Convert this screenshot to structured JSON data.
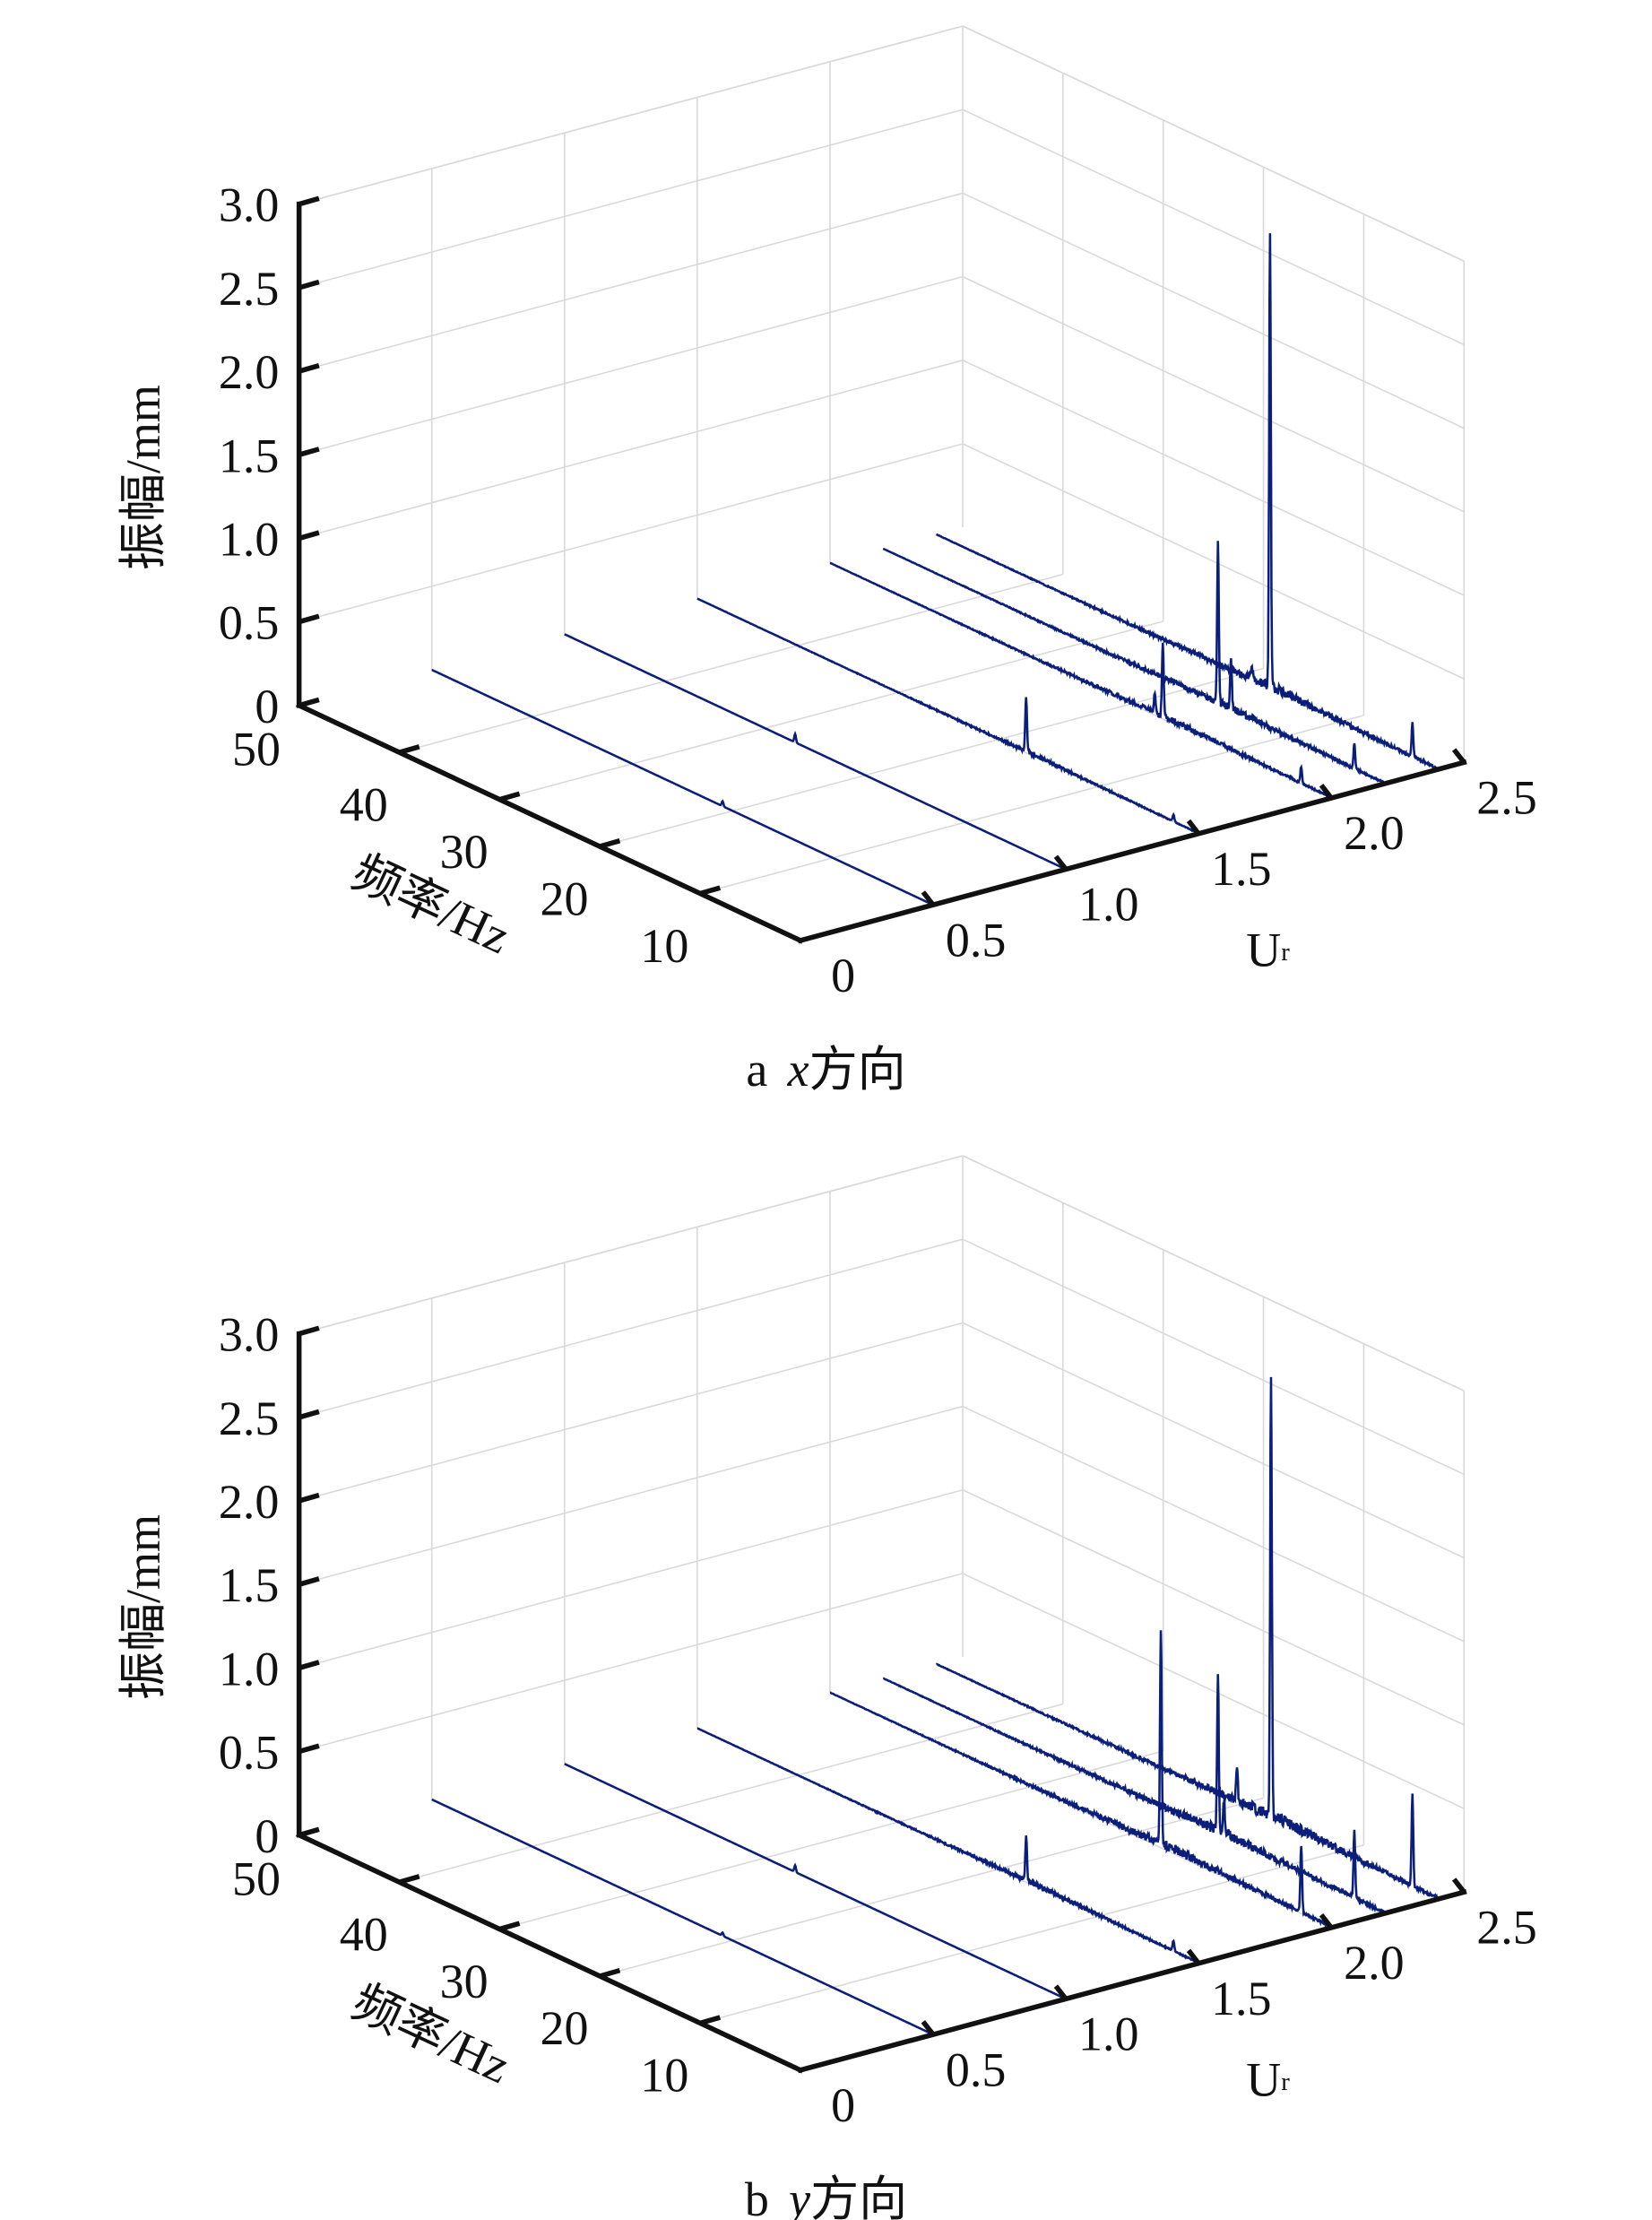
{
  "colors": {
    "series": "#0b1f7a",
    "grid": "#d9d9d9",
    "axis": "#111111"
  },
  "chart_data": [
    {
      "type": "line",
      "subtype": "3d-waterfall",
      "caption_letter": "a",
      "caption_var": "x",
      "caption_text": "方向",
      "zlabel": "振幅/mm",
      "flabel": "频率/Hz",
      "ulabel_main": "U",
      "ulabel_sub": "r",
      "zlim": [
        0,
        3.0
      ],
      "flim": [
        0,
        50
      ],
      "ulim": [
        0,
        2.5
      ],
      "zticks": [
        "0",
        "0.5",
        "1.0",
        "1.5",
        "2.0",
        "2.5",
        "3.0"
      ],
      "fticks": [
        "10",
        "20",
        "30",
        "40",
        "50"
      ],
      "uticks": [
        "0",
        "0.5",
        "1.0",
        "1.5",
        "2.0",
        "2.5"
      ],
      "series": [
        {
          "ur": 0.5,
          "noise": 0.0,
          "peaks": [
            {
              "freq": 21,
              "amp": 0.03
            }
          ]
        },
        {
          "ur": 1.0,
          "noise": 0.0,
          "peaks": [
            {
              "freq": 27,
              "amp": 0.05
            }
          ]
        },
        {
          "ur": 1.5,
          "noise": 0.01,
          "peaks": [
            {
              "freq": 17.2,
              "amp": 0.33
            },
            {
              "freq": 2.5,
              "amp": 0.04
            }
          ]
        },
        {
          "ur": 2.0,
          "noise": 0.02,
          "peaks": [
            {
              "freq": 16.8,
              "amp": 0.43
            },
            {
              "freq": 17.6,
              "amp": 0.12
            },
            {
              "freq": 3.0,
              "amp": 0.1
            }
          ]
        },
        {
          "ur": 2.2,
          "noise": 0.025,
          "peaks": [
            {
              "freq": 16.6,
              "amp": 0.95
            },
            {
              "freq": 15.3,
              "amp": 0.3
            },
            {
              "freq": 3.0,
              "amp": 0.15
            }
          ]
        },
        {
          "ur": 2.4,
          "noise": 0.03,
          "peaks": [
            {
              "freq": 16.7,
              "amp": 2.7
            },
            {
              "freq": 18.5,
              "amp": 0.08
            },
            {
              "freq": 2.5,
              "amp": 0.2
            }
          ]
        }
      ]
    },
    {
      "type": "line",
      "subtype": "3d-waterfall",
      "caption_letter": "b",
      "caption_var": "y",
      "caption_text": "方向",
      "zlabel": "振幅/mm",
      "flabel": "频率/Hz",
      "ulabel_main": "U",
      "ulabel_sub": "r",
      "zlim": [
        0,
        3.0
      ],
      "flim": [
        0,
        50
      ],
      "ulim": [
        0,
        2.5
      ],
      "zticks": [
        "0",
        "0.5",
        "1.0",
        "1.5",
        "2.0",
        "2.5",
        "3.0"
      ],
      "fticks": [
        "10",
        "20",
        "30",
        "40",
        "50"
      ],
      "uticks": [
        "0",
        "0.5",
        "1.0",
        "1.5",
        "2.0",
        "2.5"
      ],
      "series": [
        {
          "ur": 0.5,
          "noise": 0.0,
          "peaks": [
            {
              "freq": 21,
              "amp": 0.02
            }
          ]
        },
        {
          "ur": 1.0,
          "noise": 0.0,
          "peaks": [
            {
              "freq": 27,
              "amp": 0.04
            }
          ]
        },
        {
          "ur": 1.5,
          "noise": 0.015,
          "peaks": [
            {
              "freq": 17.2,
              "amp": 0.27
            },
            {
              "freq": 2.5,
              "amp": 0.06
            }
          ]
        },
        {
          "ur": 2.0,
          "noise": 0.03,
          "peaks": [
            {
              "freq": 17.0,
              "amp": 1.3
            },
            {
              "freq": 3.0,
              "amp": 0.4
            }
          ]
        },
        {
          "ur": 2.2,
          "noise": 0.035,
          "peaks": [
            {
              "freq": 16.6,
              "amp": 0.9
            },
            {
              "freq": 16.0,
              "amp": 0.2
            },
            {
              "freq": 3.0,
              "amp": 0.4
            }
          ]
        },
        {
          "ur": 2.4,
          "noise": 0.04,
          "peaks": [
            {
              "freq": 16.6,
              "amp": 2.65
            },
            {
              "freq": 20.0,
              "amp": 0.2
            },
            {
              "freq": 2.5,
              "amp": 0.55
            }
          ]
        }
      ]
    }
  ]
}
